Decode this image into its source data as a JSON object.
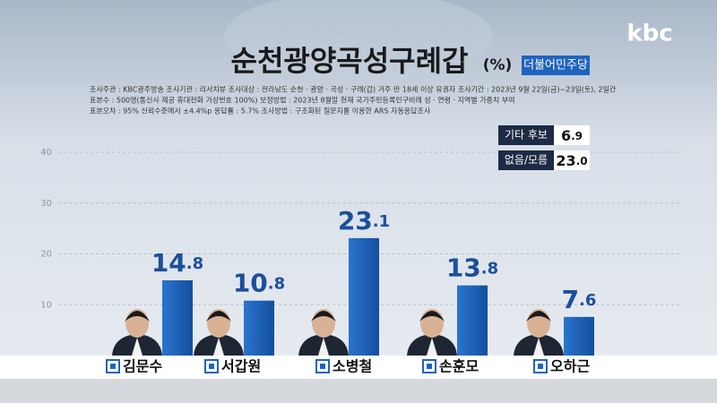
{
  "logo": "kbc",
  "chart_data": {
    "type": "bar",
    "title": "순천광양곡성구례갑",
    "unit": "(%)",
    "party": "더불어민주당",
    "survey_notes": [
      "조사주관 : KBC광주방송   조사기관 : 리서치뷰   조사대상 : 전라남도 순천 · 광양 · 곡성 · 구례(갑) 거주 만 18세 이상 유권자   조사기간 : 2023년 9월 22일(금)~23일(토), 2일간",
      "표본수 : 500명(통신사 제공 휴대전화 가상번호 100%)   보정방법 : 2023년 8월말 현재 국가주민등록인구비례 성 · 연령 · 지역별 가중치 부여",
      "표본오차 : 95% 신뢰수준에서 ±4.4%p   응답률 : 5.7%   조사방법 : 구조화된 질문지를 이용한 ARS 자동응답조사"
    ],
    "categories": [
      "김문수",
      "서갑원",
      "소병철",
      "손훈모",
      "오하근"
    ],
    "values": [
      14.8,
      10.8,
      23.1,
      13.8,
      7.6
    ],
    "color": "#1d63bd",
    "ylim": [
      0,
      40
    ],
    "yticks": [
      10,
      20,
      30,
      40
    ],
    "grid": true,
    "others": {
      "categories": [
        "기타 후보",
        "없음/모름"
      ],
      "values": [
        6.9,
        23.0
      ],
      "value_labels": [
        "6.9",
        "23.0"
      ]
    }
  }
}
